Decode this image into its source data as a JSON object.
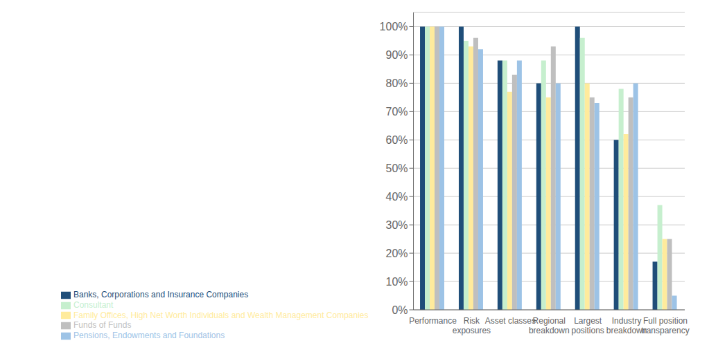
{
  "chart_data": {
    "type": "bar",
    "categories": [
      "Performance",
      "Risk\nexposures",
      "Asset classes",
      "Regional\nbreakdown",
      "Largest\npositions",
      "Industry\nbreakdown",
      "Full position\ntransparency"
    ],
    "series": [
      {
        "name": "Banks, Corporations and Insurance Companies",
        "color": "#1F4E79",
        "values": [
          100,
          100,
          88,
          80,
          100,
          60,
          17
        ]
      },
      {
        "name": "Consultant",
        "color": "#C6EFCE",
        "values": [
          100,
          95,
          88,
          88,
          96,
          78,
          37
        ]
      },
      {
        "name": "Family Offices, High Net Worth Individuals and Wealth Management Companies",
        "color": "#FFEB9C",
        "values": [
          100,
          93,
          77,
          75,
          80,
          62,
          25
        ]
      },
      {
        "name": "Funds of Funds",
        "color": "#BFBFBF",
        "values": [
          100,
          96,
          83,
          93,
          75,
          75,
          25
        ]
      },
      {
        "name": "Pensions, Endowments and Foundations",
        "color": "#9DC3E6",
        "values": [
          100,
          92,
          88,
          80,
          73,
          80,
          5
        ]
      }
    ],
    "ylim": [
      0,
      105
    ],
    "yticks": [
      {
        "value": 0,
        "label": "0%"
      },
      {
        "value": 10,
        "label": "10%"
      },
      {
        "value": 20,
        "label": "20%"
      },
      {
        "value": 30,
        "label": "30%"
      },
      {
        "value": 40,
        "label": "40%"
      },
      {
        "value": 50,
        "label": "50%"
      },
      {
        "value": 60,
        "label": "60%"
      },
      {
        "value": 70,
        "label": "70%"
      },
      {
        "value": 80,
        "label": "80%"
      },
      {
        "value": 90,
        "label": "90%"
      },
      {
        "value": 100,
        "label": "100%"
      }
    ],
    "grid": true,
    "legend": "bottom"
  }
}
